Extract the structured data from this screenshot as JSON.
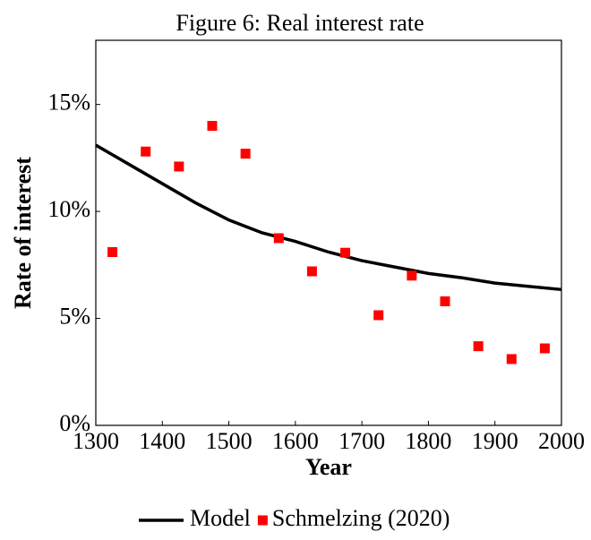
{
  "chart_data": {
    "type": "line",
    "title": "Figure 6: Real interest rate",
    "x_label": "Year",
    "y_label": "Rate of interest",
    "xlim": [
      1300,
      2000
    ],
    "ylim": [
      0,
      18
    ],
    "xticks": [
      1300,
      1400,
      1500,
      1600,
      1700,
      1800,
      1900,
      2000
    ],
    "yticks": [
      {
        "value": 0,
        "label": "0%"
      },
      {
        "value": 5,
        "label": "5%"
      },
      {
        "value": 10,
        "label": "10%"
      },
      {
        "value": 15,
        "label": "15%"
      }
    ],
    "legend": "bottom",
    "series": [
      {
        "name": "Model",
        "type": "line",
        "color": "#000000",
        "x": [
          1300,
          1350,
          1400,
          1450,
          1500,
          1550,
          1600,
          1650,
          1700,
          1750,
          1800,
          1850,
          1900,
          1950,
          2000
        ],
        "values": [
          13.1,
          12.2,
          11.3,
          10.4,
          9.6,
          9.0,
          8.6,
          8.1,
          7.7,
          7.4,
          7.1,
          6.9,
          6.65,
          6.5,
          6.35
        ]
      },
      {
        "name": "Schmelzing (2020)",
        "type": "scatter",
        "color": "#ff0000",
        "x": [
          1325,
          1375,
          1425,
          1475,
          1525,
          1575,
          1625,
          1675,
          1725,
          1775,
          1825,
          1875,
          1925,
          1975
        ],
        "values": [
          8.1,
          12.8,
          12.1,
          14.0,
          12.7,
          8.75,
          7.2,
          8.07,
          5.15,
          7.0,
          5.8,
          3.7,
          3.1,
          3.6
        ]
      }
    ]
  }
}
